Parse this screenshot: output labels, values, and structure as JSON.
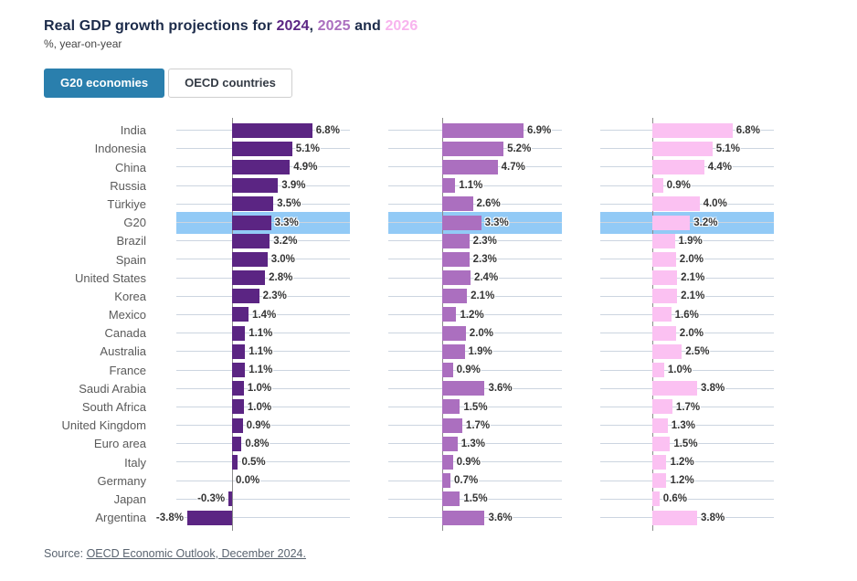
{
  "header": {
    "title_prefix": "Real GDP growth projections for ",
    "year1": "2024",
    "comma": ", ",
    "year2": "2025",
    "and_word": " and ",
    "year3": "2026",
    "subtitle": "%, year-on-year"
  },
  "tabs": [
    {
      "label": "G20 economies",
      "active": true
    },
    {
      "label": "OECD countries",
      "active": false
    }
  ],
  "colors": {
    "title_text": "#1c2b4a",
    "year_2024": "#5b2583",
    "year_2025": "#ab6fbf",
    "year_2026": "#f8b4ee",
    "bar_2024": "#5b2583",
    "bar_2025": "#ab6fbf",
    "bar_2026": "#fbc1f2",
    "highlight_band": "#92caf6",
    "gridline": "#ccd5e0",
    "axis": "#8c8c8c",
    "tab_active_bg": "#2a7fad"
  },
  "chart_data": {
    "type": "bar",
    "orientation": "horizontal",
    "title": "Real GDP growth projections for 2024, 2025 and 2026",
    "subtitle": "%, year-on-year",
    "value_suffix": "%",
    "xlim": [
      -4.7,
      10
    ],
    "grid": true,
    "highlighted_category": "G20",
    "categories": [
      "India",
      "Indonesia",
      "China",
      "Russia",
      "Türkiye",
      "G20",
      "Brazil",
      "Spain",
      "United States",
      "Korea",
      "Mexico",
      "Canada",
      "Australia",
      "France",
      "Saudi Arabia",
      "South Africa",
      "United Kingdom",
      "Euro area",
      "Italy",
      "Germany",
      "Japan",
      "Argentina"
    ],
    "series": [
      {
        "name": "2024",
        "color_key": "bar_2024",
        "values": [
          6.8,
          5.1,
          4.9,
          3.9,
          3.5,
          3.3,
          3.2,
          3.0,
          2.8,
          2.3,
          1.4,
          1.1,
          1.1,
          1.1,
          1.0,
          1.0,
          0.9,
          0.8,
          0.5,
          0.0,
          -0.3,
          -3.8
        ]
      },
      {
        "name": "2025",
        "color_key": "bar_2025",
        "values": [
          6.9,
          5.2,
          4.7,
          1.1,
          2.6,
          3.3,
          2.3,
          2.3,
          2.4,
          2.1,
          1.2,
          2.0,
          1.9,
          0.9,
          3.6,
          1.5,
          1.7,
          1.3,
          0.9,
          0.7,
          1.5,
          3.6
        ]
      },
      {
        "name": "2026",
        "color_key": "bar_2026",
        "values": [
          6.8,
          5.1,
          4.4,
          0.9,
          4.0,
          3.2,
          1.9,
          2.0,
          2.1,
          2.1,
          1.6,
          2.0,
          2.5,
          1.0,
          3.8,
          1.7,
          1.3,
          1.5,
          1.2,
          1.2,
          0.6,
          3.8
        ]
      }
    ]
  },
  "source": {
    "prefix": "Source: ",
    "link_text": "OECD Economic Outlook, December 2024."
  }
}
